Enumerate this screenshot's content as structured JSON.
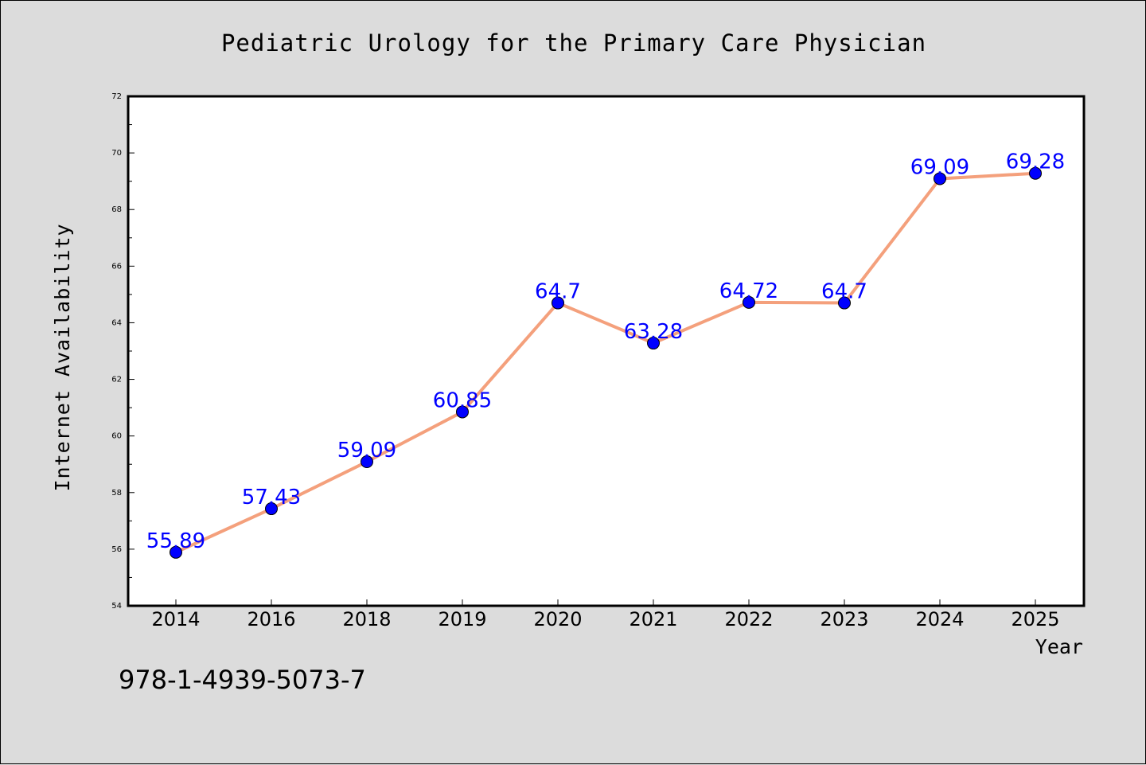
{
  "footer_text": "978-1-4939-5073-7",
  "colors": {
    "background": "#dcdcdc",
    "plot_background": "#ffffff",
    "line": "#f4a07c",
    "marker": "#0000ff",
    "data_label": "#0000ff",
    "text": "#000000"
  },
  "chart_data": {
    "type": "line",
    "title": "Pediatric Urology for the Primary Care Physician",
    "xlabel": "Year",
    "ylabel": "Internet Availability",
    "categories": [
      "2014",
      "2016",
      "2018",
      "2019",
      "2020",
      "2021",
      "2022",
      "2023",
      "2024",
      "2025"
    ],
    "series": [
      {
        "values": [
          55.89,
          57.43,
          59.09,
          60.85,
          64.7,
          63.28,
          64.72,
          64.7,
          69.09,
          69.28
        ],
        "labels": [
          "55.89",
          "57.43",
          "59.09",
          "60.85",
          "64.7",
          "63.28",
          "64.72",
          "64.7",
          "69.09",
          "69.28"
        ]
      }
    ],
    "ylim": [
      54,
      72
    ],
    "yticks": [
      54,
      56,
      58,
      60,
      62,
      64,
      66,
      68,
      70,
      72
    ],
    "grid": false,
    "legend": "none"
  }
}
